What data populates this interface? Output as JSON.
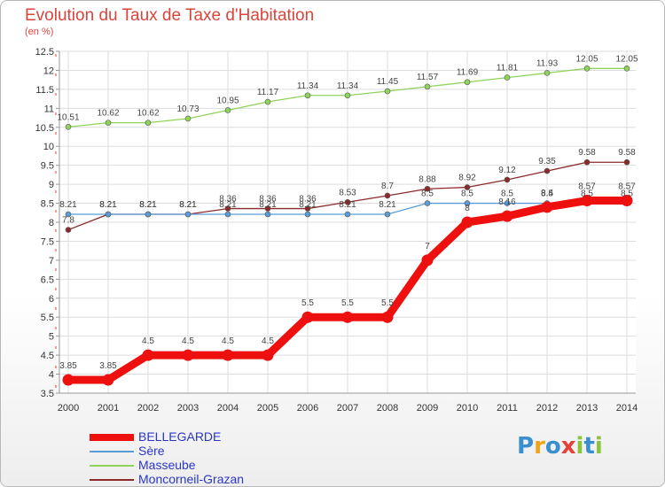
{
  "header": {
    "title": "Evolution du Taux de Taxe d'Habitation",
    "subtitle": "(en %)"
  },
  "logo": {
    "text": "Proxiti",
    "letters": [
      {
        "ch": "P",
        "color": "#3a8fd0"
      },
      {
        "ch": "r",
        "color": "#f0a21a"
      },
      {
        "ch": "o",
        "color": "#3a8fd0"
      },
      {
        "ch": "x",
        "color": "#e5403a"
      },
      {
        "ch": "i",
        "color": "#8bc43a"
      },
      {
        "ch": "t",
        "color": "#3a8fd0"
      },
      {
        "ch": "i",
        "color": "#8bc43a"
      }
    ]
  },
  "chart_data": {
    "type": "line",
    "title": "Evolution du Taux de Taxe d'Habitation",
    "ylabel": "(en %)",
    "xlabel": "",
    "x": [
      "2000",
      "2001",
      "2002",
      "2003",
      "2004",
      "2005",
      "2006",
      "2007",
      "2008",
      "2009",
      "2010",
      "2011",
      "2012",
      "2013",
      "2014"
    ],
    "ylim": [
      3.5,
      12.5
    ],
    "yticks": [
      "3.5",
      "4",
      "4.5",
      "5",
      "5.5",
      "6",
      "6.5",
      "7",
      "7.5",
      "8",
      "8.5",
      "9",
      "9.5",
      "10",
      "10.5",
      "11",
      "11.5",
      "12",
      "12.5"
    ],
    "grid": true,
    "legend_position": "bottom-left",
    "series": [
      {
        "name": "BELLEGARDE",
        "color": "#ee0f0f",
        "values": [
          3.85,
          3.85,
          4.5,
          4.5,
          4.5,
          4.5,
          5.5,
          5.5,
          5.5,
          7,
          8,
          8.16,
          8.4,
          8.57,
          8.57
        ],
        "labels": [
          "3.85",
          "3.85",
          "4.5",
          "4.5",
          "4.5",
          "4.5",
          "5.5",
          "5.5",
          "5.5",
          "7",
          "8",
          "8.16",
          "8.4",
          "8.57",
          "8.57"
        ]
      },
      {
        "name": "Sère",
        "color": "#5a9cd6",
        "values": [
          8.21,
          8.21,
          8.21,
          8.21,
          8.21,
          8.21,
          8.21,
          8.21,
          8.21,
          8.5,
          8.5,
          8.5,
          8.5,
          8.5,
          8.5
        ],
        "labels": [
          "8.21",
          "8.21",
          "8.21",
          "8.21",
          "8.21",
          "8.21",
          "8.21",
          "8.21",
          "8.21",
          "8.5",
          "8.5",
          "8.5",
          "8.5",
          "8.5",
          "8.5"
        ]
      },
      {
        "name": "Masseube",
        "color": "#8fd45a",
        "values": [
          10.51,
          10.62,
          10.62,
          10.73,
          10.95,
          11.17,
          11.34,
          11.34,
          11.45,
          11.57,
          11.69,
          11.81,
          11.93,
          12.05,
          12.05
        ],
        "labels": [
          "10.51",
          "10.62",
          "10.62",
          "10.73",
          "10.95",
          "11.17",
          "11.34",
          "11.34",
          "11.45",
          "11.57",
          "11.69",
          "11.81",
          "11.93",
          "12.05",
          "12.05"
        ]
      },
      {
        "name": "Moncorneil-Grazan",
        "color": "#8b2a2a",
        "values": [
          7.8,
          8.21,
          8.21,
          8.21,
          8.36,
          8.36,
          8.36,
          8.53,
          8.7,
          8.88,
          8.92,
          9.12,
          9.35,
          9.58,
          9.58
        ],
        "labels": [
          "7.8",
          "8.21",
          "8.21",
          "8.21",
          "8.36",
          "8.36",
          "8.36",
          "8.53",
          "8.7",
          "8.88",
          "8.92",
          "9.12",
          "9.35",
          "9.58",
          "9.58"
        ]
      }
    ]
  }
}
